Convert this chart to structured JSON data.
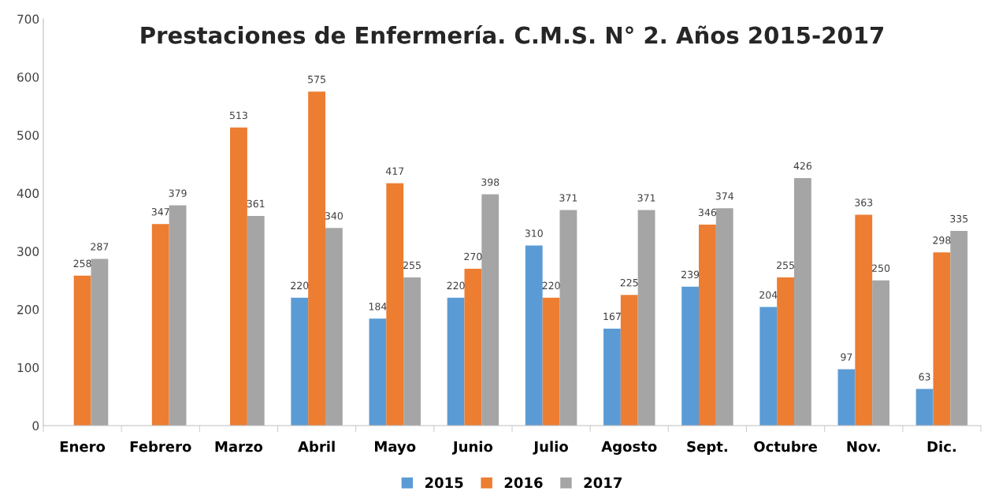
{
  "chart_data": {
    "type": "bar",
    "title": "Prestaciones de Enfermería. C.M.S. N° 2. Años 2015-2017",
    "categories": [
      "Enero",
      "Febrero",
      "Marzo",
      "Abril",
      "Mayo",
      "Junio",
      "Julio",
      "Agosto",
      "Sept.",
      "Octubre",
      "Nov.",
      "Dic."
    ],
    "series": [
      {
        "name": "2015",
        "color": "#5b9bd5",
        "values": [
          null,
          null,
          null,
          220,
          184,
          220,
          310,
          167,
          239,
          204,
          97,
          63
        ]
      },
      {
        "name": "2016",
        "color": "#ed7d31",
        "values": [
          258,
          347,
          513,
          575,
          417,
          270,
          220,
          225,
          346,
          255,
          363,
          298
        ]
      },
      {
        "name": "2017",
        "color": "#a5a5a5",
        "values": [
          287,
          379,
          361,
          340,
          255,
          398,
          371,
          371,
          374,
          426,
          250,
          335
        ]
      }
    ],
    "ylim": [
      0,
      700
    ],
    "yticks": [
      0,
      100,
      200,
      300,
      400,
      500,
      600,
      700
    ],
    "grid": false,
    "legend": "bottom",
    "data_labels": true
  }
}
